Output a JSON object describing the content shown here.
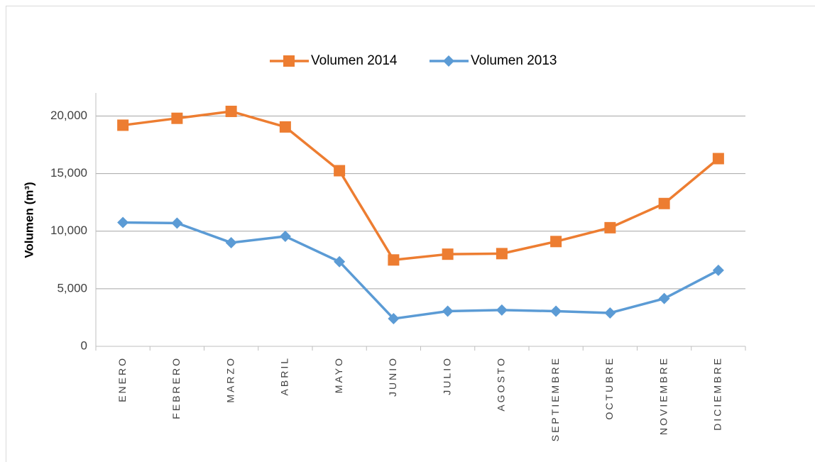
{
  "chart_data": {
    "type": "line",
    "y_label": "Volumen (m³)",
    "categories": [
      "ENERO",
      "FEBRERO",
      "MARZO",
      "ABRIL",
      "MAYO",
      "JUNIO",
      "JULIO",
      "AGOSTO",
      "SEPTIEMBRE",
      "OCTUBRE",
      "NOVIEMBRE",
      "DICIEMBRE"
    ],
    "series": [
      {
        "name": "Volumen 2014",
        "color": "#ED7D31",
        "marker": "square",
        "values": [
          19200,
          19800,
          20400,
          19050,
          15250,
          7500,
          8000,
          8050,
          9100,
          10300,
          12400,
          16300
        ]
      },
      {
        "name": "Volumen 2013",
        "color": "#5B9BD5",
        "marker": "diamond",
        "values": [
          10750,
          10700,
          9000,
          9550,
          7350,
          2400,
          3050,
          3150,
          3050,
          2900,
          4150,
          6600
        ]
      }
    ],
    "ylim": [
      0,
      22000
    ],
    "yticks": [
      0,
      {
        "value": 5000,
        "label": "5,000"
      },
      {
        "value": 10000,
        "label": "10,000"
      },
      {
        "value": 15000,
        "label": "15,000"
      },
      {
        "value": 20000,
        "label": "20,000"
      }
    ],
    "grid": true,
    "legend": "top"
  }
}
